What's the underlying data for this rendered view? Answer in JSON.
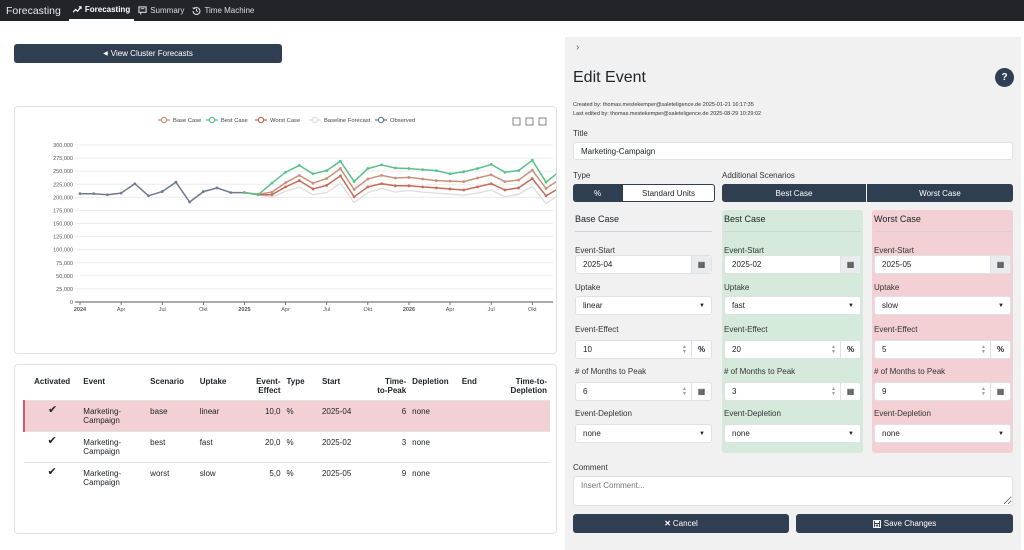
{
  "nav": {
    "brand": "Forecasting",
    "items": [
      {
        "label": "Forecasting",
        "icon": "trend-icon",
        "active": true
      },
      {
        "label": "Summary",
        "icon": "summary-icon",
        "active": false
      },
      {
        "label": "Time Machine",
        "icon": "history-icon",
        "active": false
      }
    ]
  },
  "view_cluster_label": "View Cluster Forecasts",
  "chart_data": {
    "type": "line",
    "legend": [
      "Base Case",
      "Best Case",
      "Worst Case",
      "Baseline Forecast",
      "Observed"
    ],
    "legend_position": "top",
    "colors": {
      "Base Case": "#c8927a",
      "Best Case": "#59c08a",
      "Worst Case": "#c86a5a",
      "Baseline Forecast": "#dddddd",
      "Observed": "#6e7b93"
    },
    "y_ticks": [
      "0",
      "25,000",
      "50,000",
      "75,000",
      "100,000",
      "125,000",
      "150,000",
      "175,000",
      "200,000",
      "225,000",
      "250,000",
      "275,000",
      "300,000"
    ],
    "ylim": [
      0,
      300000
    ],
    "x_ticks": [
      {
        "label": "2024",
        "bold": true,
        "i": 0
      },
      {
        "label": "Apr",
        "bold": false,
        "i": 3
      },
      {
        "label": "Jul",
        "bold": false,
        "i": 6
      },
      {
        "label": "Okt",
        "bold": false,
        "i": 9
      },
      {
        "label": "2025",
        "bold": true,
        "i": 12
      },
      {
        "label": "Apr",
        "bold": false,
        "i": 15
      },
      {
        "label": "Jul",
        "bold": false,
        "i": 18
      },
      {
        "label": "Okt",
        "bold": false,
        "i": 21
      },
      {
        "label": "2026",
        "bold": true,
        "i": 24
      },
      {
        "label": "Apr",
        "bold": false,
        "i": 27
      },
      {
        "label": "Jul",
        "bold": false,
        "i": 30
      },
      {
        "label": "Okt",
        "bold": false,
        "i": 33
      }
    ],
    "x_count": 35,
    "series": [
      {
        "name": "Observed",
        "start": 0,
        "values": [
          207000,
          207000,
          205000,
          208000,
          226000,
          203000,
          211000,
          229000,
          191000,
          211000,
          218000,
          209000,
          209000
        ]
      },
      {
        "name": "Baseline Forecast",
        "start": 12,
        "values": [
          209000,
          205000,
          200000,
          212000,
          220000,
          205000,
          209000,
          227000,
          190000,
          209000,
          217000,
          210000,
          213000,
          210000,
          208000,
          206000,
          204000,
          208000,
          214000,
          201000,
          206000,
          221000,
          188000,
          206000,
          213000,
          206000
        ]
      },
      {
        "name": "Base Case",
        "start": 12,
        "values": [
          209000,
          206000,
          210000,
          228000,
          242000,
          227000,
          236000,
          255000,
          215000,
          235000,
          242000,
          237000,
          238000,
          235000,
          232000,
          231000,
          230000,
          237000,
          243000,
          230000,
          233000,
          252000,
          217000,
          234000,
          240000,
          233000
        ]
      },
      {
        "name": "Worst Case",
        "start": 12,
        "values": [
          209000,
          205000,
          205000,
          220000,
          232000,
          216000,
          223000,
          241000,
          201000,
          220000,
          226000,
          222000,
          222000,
          220000,
          218000,
          216000,
          214000,
          220000,
          226000,
          214000,
          218000,
          236000,
          203000,
          218000,
          224000,
          218000
        ]
      },
      {
        "name": "Best Case",
        "start": 12,
        "values": [
          209000,
          205000,
          227000,
          248000,
          261000,
          245000,
          251000,
          269000,
          230000,
          255000,
          262000,
          256000,
          255000,
          253000,
          251000,
          245000,
          249000,
          255000,
          263000,
          248000,
          251000,
          271000,
          229000,
          250000,
          257000,
          253000
        ]
      }
    ]
  },
  "table": {
    "headers": [
      "Activated",
      "Event",
      "Scenario",
      "Uptake",
      "Event-\nEffect",
      "Type",
      "Start",
      "Time-\nto-Peak",
      "Depletion",
      "End",
      "Time-to-\nDepletion"
    ],
    "rows": [
      {
        "activated": "✔",
        "event": "Marketing-\nCampaign",
        "scenario": "base",
        "uptake": "linear",
        "effect": "10,0",
        "type": "%",
        "start": "2025-04",
        "ttp": "6",
        "depletion": "none",
        "end": "",
        "ttd": ""
      },
      {
        "activated": "✔",
        "event": "Marketing-\nCampaign",
        "scenario": "best",
        "uptake": "fast",
        "effect": "20,0",
        "type": "%",
        "start": "2025-02",
        "ttp": "3",
        "depletion": "none",
        "end": "",
        "ttd": ""
      },
      {
        "activated": "✔",
        "event": "Marketing-\nCampaign",
        "scenario": "worst",
        "uptake": "slow",
        "effect": "5,0",
        "type": "%",
        "start": "2025-05",
        "ttp": "9",
        "depletion": "none",
        "end": "",
        "ttd": ""
      }
    ]
  },
  "panel": {
    "collapse_icon": "chevron-right-icon",
    "title": "Edit Event",
    "help": "?",
    "created": "Created by: thomas.mestekemper@saleteligence.de 2025-01-21 16:17:35",
    "edited": "Last edited by: thomas.mestekemper@saleteligence.de 2025-08-29 10:29:02",
    "title_label": "Title",
    "title_value": "Marketing-Campaign",
    "type_label": "Type",
    "type_options": [
      "%",
      "Standard Units"
    ],
    "additional_label": "Additional Scenarios",
    "additional_options": [
      "Best Case",
      "Worst Case"
    ],
    "field_labels": {
      "start": "Event-Start",
      "uptake": "Uptake",
      "effect": "Event-Effect",
      "months": "# of Months to Peak",
      "depletion": "Event-Depletion"
    },
    "effect_unit": "%",
    "scenarios": [
      {
        "title": "Base Case",
        "start": "2025-04",
        "uptake": "linear",
        "effect": "10",
        "months": "6",
        "depletion": "none"
      },
      {
        "title": "Best Case",
        "start": "2025-02",
        "uptake": "fast",
        "effect": "20",
        "months": "3",
        "depletion": "none"
      },
      {
        "title": "Worst Case",
        "start": "2025-05",
        "uptake": "slow",
        "effect": "5",
        "months": "9",
        "depletion": "none"
      }
    ],
    "comment_label": "Comment",
    "comment_placeholder": "Insert Comment...",
    "cancel_label": "Cancel",
    "save_label": "Save Changes"
  }
}
